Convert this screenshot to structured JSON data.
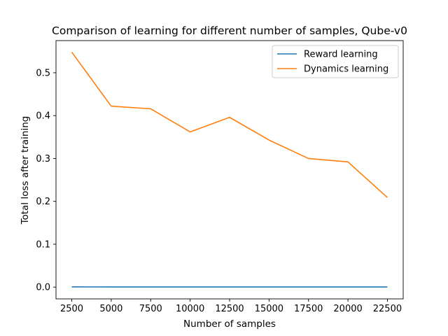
{
  "chart_data": {
    "type": "line",
    "title": "Comparison of learning for different number of samples, Qube-v0",
    "xlabel": "Number of samples",
    "ylabel": "Total loss after training",
    "x": [
      2500,
      5000,
      7500,
      10000,
      12500,
      15000,
      17500,
      20000,
      22500
    ],
    "xticks": [
      2500,
      5000,
      7500,
      10000,
      12500,
      15000,
      17500,
      20000,
      22500
    ],
    "yticks": [
      0.0,
      0.1,
      0.2,
      0.3,
      0.4,
      0.5
    ],
    "xlim": [
      1500,
      23500
    ],
    "ylim": [
      -0.0275,
      0.575
    ],
    "grid": false,
    "legend_position": "top-right",
    "series": [
      {
        "name": "Reward learning",
        "color": "#1f77b4",
        "values": [
          0.0005,
          0.0004,
          0.0004,
          0.0004,
          0.0004,
          0.0004,
          0.0004,
          0.0004,
          0.0004
        ]
      },
      {
        "name": "Dynamics learning",
        "color": "#ff7f0e",
        "values": [
          0.548,
          0.422,
          0.416,
          0.362,
          0.396,
          0.343,
          0.3,
          0.292,
          0.209
        ]
      }
    ]
  }
}
